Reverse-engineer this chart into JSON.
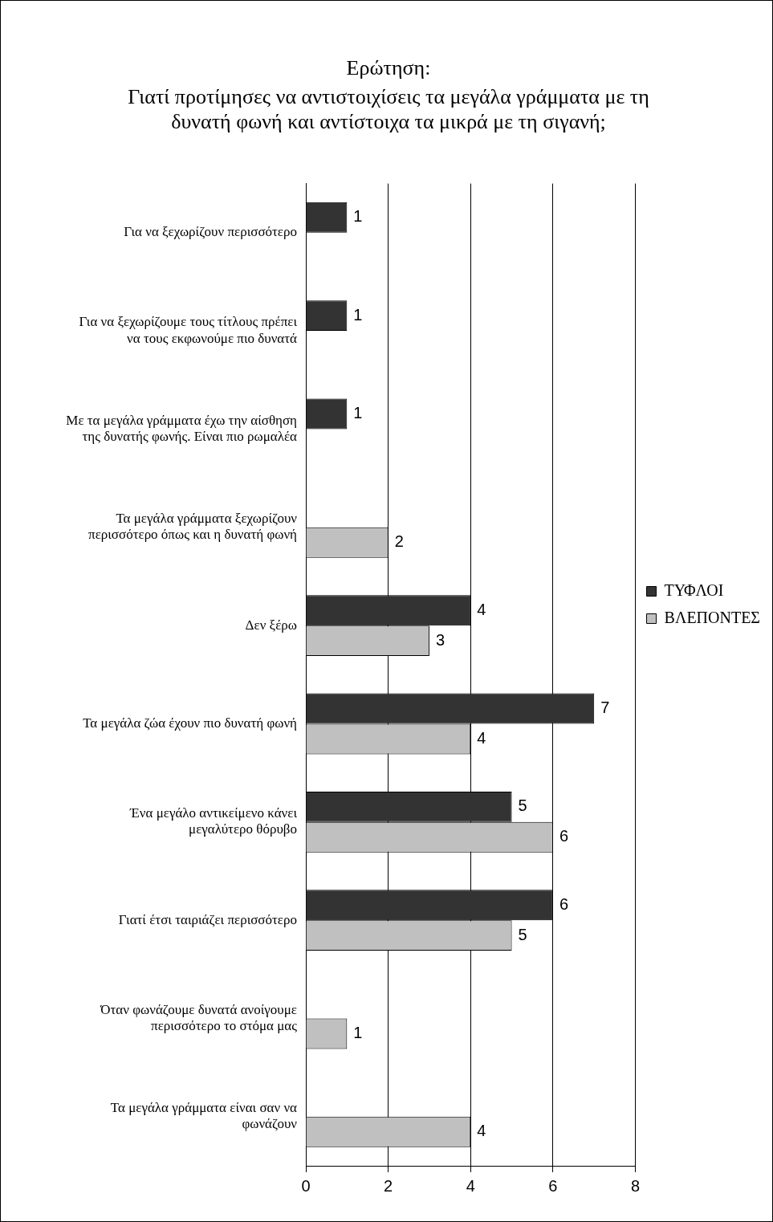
{
  "chart_data": {
    "type": "bar",
    "orientation": "horizontal",
    "title": "Ερώτηση:",
    "subtitle": "Γιατί προτίμησες να αντιστοιχίσεις τα μεγάλα γράμματα με τη δυνατή φωνή και αντίστοιχα τα μικρά με τη σιγανή;",
    "categories": [
      "Για να ξεχωρίζουν περισσότερο",
      "Για να ξεχωρίζουμε τους τίτλους πρέπει να τους εκφωνούμε πιο δυνατά",
      "Με τα μεγάλα γράμματα έχω την αίσθηση της δυνατής φωνής. Είναι πιο ρωμαλέα",
      "Τα μεγάλα γράμματα ξεχωρίζουν περισσότερο όπως και η δυνατή φωνή",
      "Δεν ξέρω",
      "Τα μεγάλα ζώα έχουν πιο δυνατή φωνή",
      "Ένα μεγάλο αντικείμενο κάνει μεγαλύτερο θόρυβο",
      "Γιατί έτσι ταιριάζει περισσότερο",
      "Όταν φωνάζουμε δυνατά ανοίγουμε περισσότερο το στόμα μας",
      "Τα μεγάλα γράμματα είναι σαν να φωνάζουν"
    ],
    "series": [
      {
        "name": "ΤΥΦΛΟΙ",
        "color": "#333333",
        "values": [
          1,
          1,
          1,
          null,
          4,
          7,
          5,
          6,
          null,
          null
        ]
      },
      {
        "name": "ΒΛΕΠΟΝΤΕΣ",
        "color": "#c0c0c0",
        "values": [
          null,
          null,
          null,
          2,
          3,
          4,
          6,
          5,
          1,
          4
        ]
      }
    ],
    "xlim": [
      0,
      8
    ],
    "xticks": [
      0,
      2,
      4,
      6,
      8
    ],
    "grid": "x",
    "legend": "right",
    "data_labels": true
  }
}
